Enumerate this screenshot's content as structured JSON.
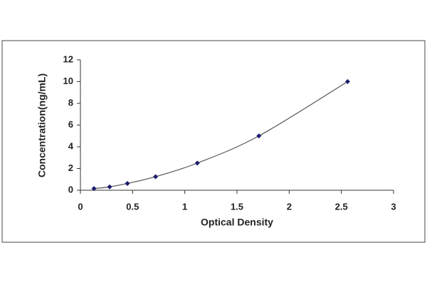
{
  "chart_data": {
    "type": "scatter",
    "x_label": "Optical Density",
    "y_label": "Concentration(ng/mL)",
    "x": [
      0.13,
      0.28,
      0.45,
      0.72,
      1.12,
      1.71,
      2.56
    ],
    "series": [
      {
        "color": "#1c1c6e",
        "line_color": "#555555",
        "values": [
          0.156,
          0.312,
          0.625,
          1.25,
          2.5,
          5,
          10
        ]
      }
    ],
    "xlim": [
      0,
      3
    ],
    "xticks": [
      0,
      0.5,
      1,
      1.5,
      2,
      2.5,
      3
    ],
    "ylim": [
      0,
      12
    ],
    "yticks": [
      0,
      2,
      4,
      6,
      8,
      10,
      12
    ],
    "grid": false,
    "line": true
  }
}
